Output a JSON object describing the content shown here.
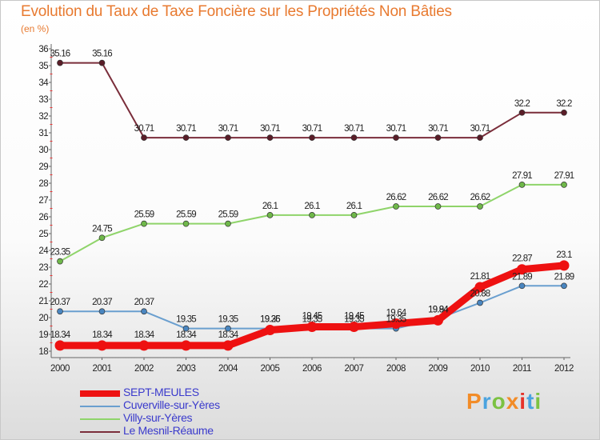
{
  "title": "Evolution du Taux de Taxe Foncière sur les Propriétés Non Bâties",
  "unit": "(en %)",
  "logo_text": "Proxiti",
  "logo_colors": [
    "#f28c28",
    "#4aa3df",
    "#7cc242",
    "#f28c28",
    "#e6332a",
    "#4aa3df",
    "#7cc242"
  ],
  "chart_data": {
    "type": "line",
    "title": "Evolution du Taux de Taxe Foncière sur les Propriétés Non Bâties",
    "ylabel": "(en %)",
    "xlabel": "",
    "categories": [
      "2000",
      "2001",
      "2002",
      "2003",
      "2004",
      "2005",
      "2006",
      "2007",
      "2008",
      "2009",
      "2010",
      "2011",
      "2012"
    ],
    "ylim": [
      18,
      36
    ],
    "yticks": [
      "18",
      "19",
      "20",
      "21",
      "22",
      "23",
      "24",
      "25",
      "26",
      "27",
      "28",
      "29",
      "30",
      "31",
      "32",
      "33",
      "34",
      "35",
      "36"
    ],
    "grid": false,
    "legend_position": "bottom-left",
    "series": [
      {
        "name": "Le Mesnil-Réaume",
        "color": "#7a2d3a",
        "marker": "#5a1d28",
        "values": [
          35.16,
          35.16,
          30.71,
          30.71,
          30.71,
          30.71,
          30.71,
          30.71,
          30.71,
          30.71,
          30.71,
          32.2,
          32.2
        ],
        "labels": [
          "35.16",
          "35.16",
          "30.71",
          "30.71",
          "30.71",
          "30.71",
          "30.71",
          "30.71",
          "30.71",
          "30.71",
          "30.71",
          "32.2",
          "32.2"
        ]
      },
      {
        "name": "Villy-sur-Yères",
        "color": "#8fd46a",
        "marker": "#6fb84a",
        "values": [
          23.35,
          24.75,
          25.59,
          25.59,
          25.59,
          26.1,
          26.1,
          26.1,
          26.62,
          26.62,
          26.62,
          27.91,
          27.91
        ],
        "labels": [
          "23.35",
          "24.75",
          "25.59",
          "25.59",
          "25.59",
          "26.1",
          "26.1",
          "26.1",
          "26.62",
          "26.62",
          "26.62",
          "27.91",
          "27.91"
        ]
      },
      {
        "name": "Cuverville-sur-Yères",
        "color": "#6a9fcf",
        "marker": "#4a86c0",
        "values": [
          20.37,
          20.37,
          20.37,
          19.35,
          19.35,
          19.35,
          19.35,
          19.35,
          19.35,
          19.94,
          20.88,
          21.89,
          21.89
        ],
        "labels": [
          "20.37",
          "20.37",
          "20.37",
          "19.35",
          "19.35",
          "19.35",
          "19.35",
          "19.35",
          "19.35",
          "19.94",
          "20.88",
          "21.89",
          "21.89"
        ]
      },
      {
        "name": "SEPT-MEULES",
        "color": "#ee1111",
        "marker": "#ee1111",
        "values": [
          18.34,
          18.34,
          18.34,
          18.34,
          18.34,
          19.26,
          19.45,
          19.45,
          19.64,
          19.84,
          21.81,
          22.87,
          23.1
        ],
        "labels": [
          "18.34",
          "18.34",
          "18.34",
          "18.34",
          "18.34",
          "19.26",
          "19.45",
          "19.45",
          "19.64",
          "19.84",
          "21.81",
          "22.87",
          "23.1"
        ]
      }
    ]
  },
  "legend": [
    {
      "label": "SEPT-MEULES",
      "color": "#ee1111"
    },
    {
      "label": "Cuverville-sur-Yères",
      "color": "#6a9fcf"
    },
    {
      "label": "Villy-sur-Yères",
      "color": "#8fd46a"
    },
    {
      "label": "Le Mesnil-Réaume",
      "color": "#7a2d3a"
    }
  ]
}
